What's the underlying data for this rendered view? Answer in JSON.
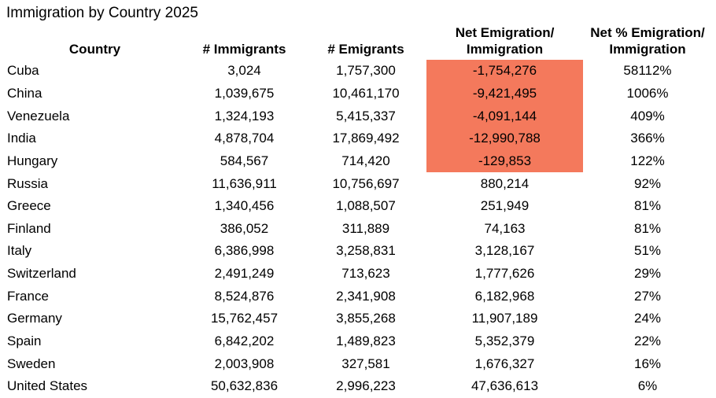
{
  "title": "Immigration by Country 2025",
  "accent_color": "#F4795C",
  "table": {
    "columns": [
      {
        "key": "country",
        "label": "Country"
      },
      {
        "key": "immigrants",
        "label": "# Immigrants"
      },
      {
        "key": "emigrants",
        "label": "# Emigrants"
      },
      {
        "key": "net",
        "label_line1": "Net Emigration/",
        "label_line2": "Immigration"
      },
      {
        "key": "net_pct",
        "label_line1": "Net % Emigration/",
        "label_line2": "Immigration"
      }
    ],
    "rows": [
      {
        "country": "Cuba",
        "immigrants": "3,024",
        "emigrants": "1,757,300",
        "net": "-1,754,276",
        "net_pct": "58112%",
        "net_highlighted": true
      },
      {
        "country": "China",
        "immigrants": "1,039,675",
        "emigrants": "10,461,170",
        "net": "-9,421,495",
        "net_pct": "1006%",
        "net_highlighted": true
      },
      {
        "country": "Venezuela",
        "immigrants": "1,324,193",
        "emigrants": "5,415,337",
        "net": "-4,091,144",
        "net_pct": "409%",
        "net_highlighted": true
      },
      {
        "country": "India",
        "immigrants": "4,878,704",
        "emigrants": "17,869,492",
        "net": "-12,990,788",
        "net_pct": "366%",
        "net_highlighted": true
      },
      {
        "country": "Hungary",
        "immigrants": "584,567",
        "emigrants": "714,420",
        "net": "-129,853",
        "net_pct": "122%",
        "net_highlighted": true
      },
      {
        "country": "Russia",
        "immigrants": "11,636,911",
        "emigrants": "10,756,697",
        "net": "880,214",
        "net_pct": "92%",
        "net_highlighted": false
      },
      {
        "country": "Greece",
        "immigrants": "1,340,456",
        "emigrants": "1,088,507",
        "net": "251,949",
        "net_pct": "81%",
        "net_highlighted": false
      },
      {
        "country": "Finland",
        "immigrants": "386,052",
        "emigrants": "311,889",
        "net": "74,163",
        "net_pct": "81%",
        "net_highlighted": false
      },
      {
        "country": "Italy",
        "immigrants": "6,386,998",
        "emigrants": "3,258,831",
        "net": "3,128,167",
        "net_pct": "51%",
        "net_highlighted": false
      },
      {
        "country": "Switzerland",
        "immigrants": "2,491,249",
        "emigrants": "713,623",
        "net": "1,777,626",
        "net_pct": "29%",
        "net_highlighted": false
      },
      {
        "country": "France",
        "immigrants": "8,524,876",
        "emigrants": "2,341,908",
        "net": "6,182,968",
        "net_pct": "27%",
        "net_highlighted": false
      },
      {
        "country": "Germany",
        "immigrants": "15,762,457",
        "emigrants": "3,855,268",
        "net": "11,907,189",
        "net_pct": "24%",
        "net_highlighted": false
      },
      {
        "country": "Spain",
        "immigrants": "6,842,202",
        "emigrants": "1,489,823",
        "net": "5,352,379",
        "net_pct": "22%",
        "net_highlighted": false
      },
      {
        "country": "Sweden",
        "immigrants": "2,003,908",
        "emigrants": "327,581",
        "net": "1,676,327",
        "net_pct": "16%",
        "net_highlighted": false
      },
      {
        "country": "United States",
        "immigrants": "50,632,836",
        "emigrants": "2,996,223",
        "net": "47,636,613",
        "net_pct": "6%",
        "net_highlighted": false
      }
    ]
  },
  "chart_data": {
    "type": "table",
    "title": "Immigration by Country 2025",
    "columns": [
      "Country",
      "# Immigrants",
      "# Emigrants",
      "Net Emigration/Immigration",
      "Net % Emigration/Immigration"
    ],
    "rows": [
      [
        "Cuba",
        3024,
        1757300,
        -1754276,
        "58112%"
      ],
      [
        "China",
        1039675,
        10461170,
        -9421495,
        "1006%"
      ],
      [
        "Venezuela",
        1324193,
        5415337,
        -4091144,
        "409%"
      ],
      [
        "India",
        4878704,
        17869492,
        -12990788,
        "366%"
      ],
      [
        "Hungary",
        584567,
        714420,
        -129853,
        "122%"
      ],
      [
        "Russia",
        11636911,
        10756697,
        880214,
        "92%"
      ],
      [
        "Greece",
        1340456,
        1088507,
        251949,
        "81%"
      ],
      [
        "Finland",
        386052,
        311889,
        74163,
        "81%"
      ],
      [
        "Italy",
        6386998,
        3258831,
        3128167,
        "51%"
      ],
      [
        "Switzerland",
        2491249,
        713623,
        1777626,
        "29%"
      ],
      [
        "France",
        8524876,
        2341908,
        6182968,
        "27%"
      ],
      [
        "Germany",
        15762457,
        3855268,
        11907189,
        "24%"
      ],
      [
        "Spain",
        6842202,
        1489823,
        5352379,
        "22%"
      ],
      [
        "Sweden",
        2003908,
        327581,
        1676327,
        "16%"
      ],
      [
        "United States",
        50632836,
        2996223,
        47636613,
        "6%"
      ]
    ],
    "highlight": {
      "column": "Net Emigration/Immigration",
      "rows": [
        "Cuba",
        "China",
        "Venezuela",
        "India",
        "Hungary"
      ],
      "color": "#F4795C"
    }
  }
}
